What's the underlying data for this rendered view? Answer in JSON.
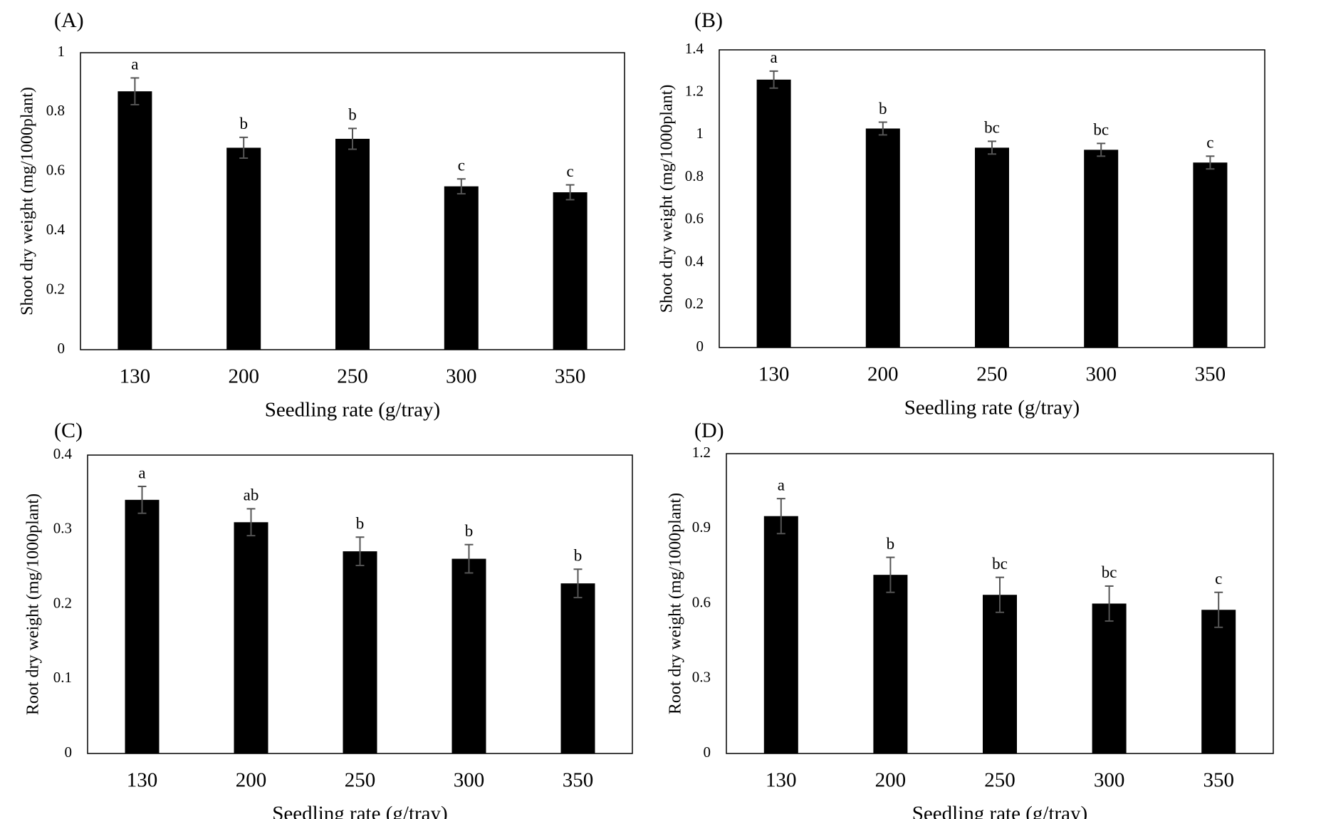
{
  "colors": {
    "bar": "#000000",
    "frame": "#000000",
    "error_bar": "#555555",
    "background": "#ffffff"
  },
  "chart_data": [
    {
      "panel": "(A)",
      "type": "bar",
      "categories": [
        "130",
        "200",
        "250",
        "300",
        "350"
      ],
      "values": [
        0.87,
        0.68,
        0.71,
        0.55,
        0.53
      ],
      "errors": [
        0.045,
        0.035,
        0.035,
        0.025,
        0.025
      ],
      "significance": [
        "a",
        "b",
        "b",
        "c",
        "c"
      ],
      "xlabel": "Seedling rate (g/tray)",
      "ylabel": "Shoot dry weight (mg/1000plant)",
      "ylim": [
        0,
        1
      ],
      "yticks": [
        0,
        0.2,
        0.4,
        0.6,
        0.8,
        1
      ],
      "ytick_labels": [
        "0",
        "0.2",
        "0.4",
        "0.6",
        "0.8",
        "1"
      ]
    },
    {
      "panel": "(B)",
      "type": "bar",
      "categories": [
        "130",
        "200",
        "250",
        "300",
        "350"
      ],
      "values": [
        1.26,
        1.03,
        0.94,
        0.93,
        0.87
      ],
      "errors": [
        0.04,
        0.03,
        0.03,
        0.03,
        0.03
      ],
      "significance": [
        "a",
        "b",
        "bc",
        "bc",
        "c"
      ],
      "xlabel": "Seedling rate (g/tray)",
      "ylabel": "Shoot dry weight (mg/1000plant)",
      "ylim": [
        0,
        1.4
      ],
      "yticks": [
        0,
        0.2,
        0.4,
        0.6,
        0.8,
        1,
        1.2,
        1.4
      ],
      "ytick_labels": [
        "0",
        "0.2",
        "0.4",
        "0.6",
        "0.8",
        "1",
        "1.2",
        "1.4"
      ]
    },
    {
      "panel": "(C)",
      "type": "bar",
      "categories": [
        "130",
        "200",
        "250",
        "300",
        "350"
      ],
      "values": [
        0.34,
        0.31,
        0.271,
        0.261,
        0.228
      ],
      "errors": [
        0.018,
        0.018,
        0.019,
        0.019,
        0.019
      ],
      "significance": [
        "a",
        "ab",
        "b",
        "b",
        "b"
      ],
      "xlabel": "Seedling rate (g/tray)",
      "ylabel": "Root dry weight (mg/1000plant)",
      "ylim": [
        0,
        0.4
      ],
      "yticks": [
        0,
        0.1,
        0.2,
        0.3,
        0.4
      ],
      "ytick_labels": [
        "0",
        "0.1",
        "0.2",
        "0.3",
        "0.4"
      ]
    },
    {
      "panel": "(D)",
      "type": "bar",
      "categories": [
        "130",
        "200",
        "250",
        "300",
        "350"
      ],
      "values": [
        0.95,
        0.715,
        0.635,
        0.6,
        0.575
      ],
      "errors": [
        0.07,
        0.07,
        0.07,
        0.07,
        0.07
      ],
      "significance": [
        "a",
        "b",
        "bc",
        "bc",
        "c"
      ],
      "xlabel": "Seedling rate (g/tray)",
      "ylabel": "Root dry weight (mg/1000plant)",
      "ylim": [
        0,
        1.2
      ],
      "yticks": [
        0,
        0.3,
        0.6,
        0.9,
        1.2
      ],
      "ytick_labels": [
        "0",
        "0.3",
        "0.6",
        "0.9",
        "1.2"
      ]
    }
  ]
}
